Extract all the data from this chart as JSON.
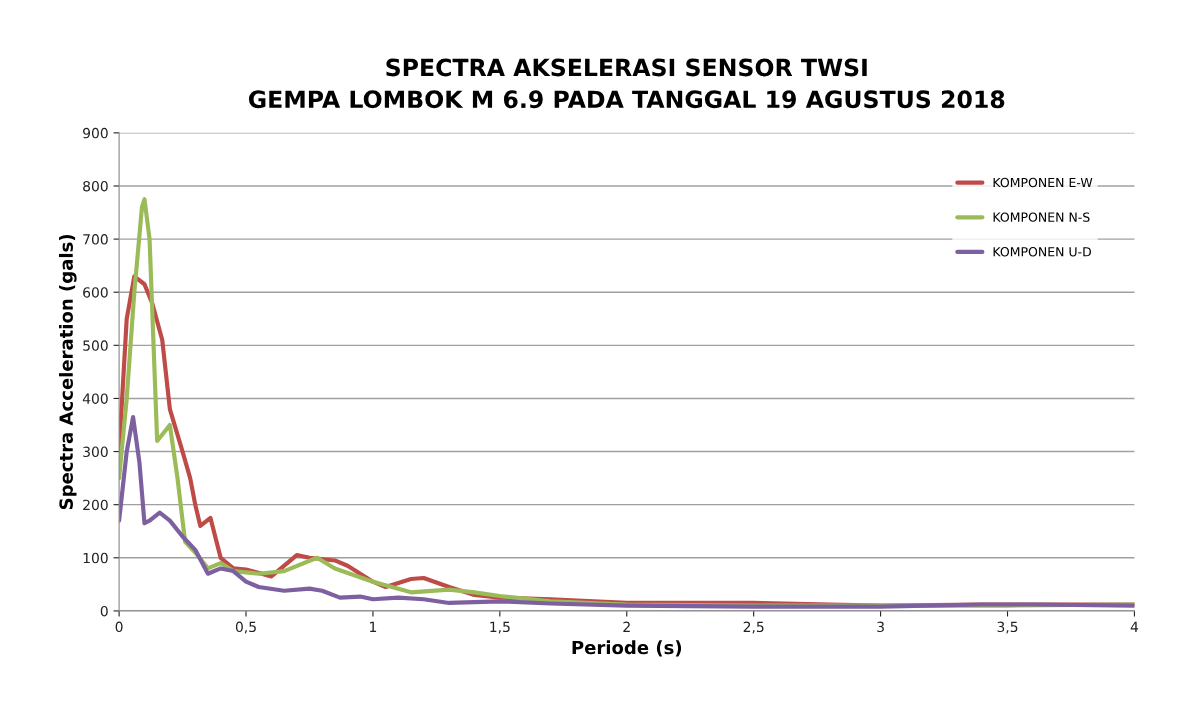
{
  "chart_data": {
    "type": "line",
    "title": "SPECTRA AKSELERASI SENSOR TWSI\nGEMPA LOMBOK M 6.9 PADA TANGGAL 19 AGUSTUS 2018",
    "xlabel": "Periode (s)",
    "ylabel": "Spectra Acceleration (gals)",
    "xlim": [
      0,
      4
    ],
    "xticks": [
      0,
      {
        "value": 0.5,
        "label": "0,5"
      },
      1,
      {
        "value": 1.5,
        "label": "1,5"
      },
      2,
      {
        "value": 2.5,
        "label": "2,5"
      },
      3,
      {
        "value": 3.5,
        "label": "3,5"
      },
      4
    ],
    "ylim": [
      0,
      900
    ],
    "yticks": [
      0,
      100,
      200,
      300,
      400,
      500,
      600,
      700,
      800,
      900
    ],
    "grid": "y",
    "legend": "top right",
    "marker": "none",
    "line_style": "solid",
    "series": [
      {
        "name": "KOMPONEN E-W",
        "color": "#be4b48",
        "x": [
          0,
          0.03,
          0.06,
          0.1,
          0.13,
          0.17,
          0.2,
          0.25,
          0.28,
          0.3,
          0.32,
          0.36,
          0.4,
          0.45,
          0.5,
          0.6,
          0.7,
          0.75,
          0.85,
          0.9,
          1.0,
          1.05,
          1.15,
          1.2,
          1.3,
          1.4,
          1.5,
          1.7,
          2,
          2.2,
          2.5,
          2.8,
          3,
          3.4,
          4
        ],
        "values": [
          300,
          550,
          630,
          615,
          580,
          510,
          380,
          300,
          250,
          200,
          160,
          175,
          100,
          80,
          78,
          65,
          105,
          100,
          95,
          85,
          55,
          45,
          60,
          62,
          45,
          30,
          25,
          22,
          15,
          15,
          15,
          12,
          10,
          12,
          12
        ]
      },
      {
        "name": "KOMPONEN N-S",
        "color": "#9bbb59",
        "x": [
          0,
          0.03,
          0.06,
          0.09,
          0.1,
          0.12,
          0.15,
          0.2,
          0.23,
          0.26,
          0.3,
          0.35,
          0.4,
          0.45,
          0.55,
          0.65,
          0.78,
          0.85,
          1.0,
          1.15,
          1.3,
          1.4,
          1.5,
          1.7,
          2,
          2.5,
          3,
          3.5,
          4
        ],
        "values": [
          250,
          400,
          600,
          760,
          775,
          700,
          320,
          350,
          250,
          130,
          110,
          80,
          90,
          75,
          70,
          75,
          100,
          80,
          55,
          35,
          40,
          35,
          28,
          18,
          12,
          10,
          10,
          10,
          12
        ]
      },
      {
        "name": "KOMPONEN U-D",
        "color": "#7d60a0",
        "x": [
          0,
          0.03,
          0.055,
          0.08,
          0.1,
          0.12,
          0.16,
          0.2,
          0.25,
          0.3,
          0.35,
          0.4,
          0.45,
          0.5,
          0.55,
          0.65,
          0.75,
          0.8,
          0.87,
          0.95,
          1.0,
          1.1,
          1.2,
          1.3,
          1.5,
          1.7,
          2,
          2.5,
          3,
          3.4,
          3.6,
          4
        ],
        "values": [
          170,
          300,
          365,
          280,
          165,
          170,
          185,
          170,
          140,
          115,
          70,
          80,
          75,
          55,
          45,
          38,
          42,
          38,
          25,
          27,
          22,
          25,
          22,
          15,
          18,
          14,
          10,
          8,
          8,
          12,
          12,
          10
        ]
      }
    ]
  }
}
